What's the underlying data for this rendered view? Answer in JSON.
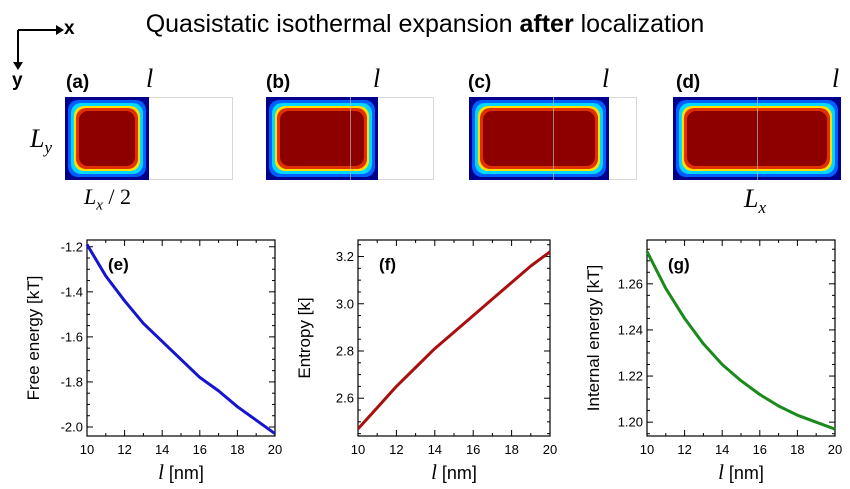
{
  "title": {
    "prefix": "Quasistatic isothermal expansion ",
    "bold": "after",
    "suffix": " localization"
  },
  "axes_indicator": {
    "x": "x",
    "y": "y"
  },
  "panels_top": [
    {
      "label": "(a)",
      "symbol": "l",
      "fill_fraction": 0.5
    },
    {
      "label": "(b)",
      "symbol": "l",
      "fill_fraction": 0.667
    },
    {
      "label": "(c)",
      "symbol": "l",
      "fill_fraction": 0.833
    },
    {
      "label": "(d)",
      "symbol": "l",
      "fill_fraction": 1.0
    }
  ],
  "annotations": {
    "ly": {
      "base": "L",
      "sub": "y"
    },
    "lx_half": {
      "base": "L",
      "sub": "x",
      "suffix": " / 2"
    },
    "lx": {
      "base": "L",
      "sub": "x"
    }
  },
  "chart_data": [
    {
      "type": "line",
      "panel_label": "(e)",
      "xlabel_symbol": "l",
      "xlabel_unit": " [nm]",
      "ylabel": "Free energy [kT]",
      "xlim": [
        10,
        20
      ],
      "ylim": [
        -2.04,
        -1.17
      ],
      "xticks": [
        10,
        12,
        14,
        16,
        18,
        20
      ],
      "yticks": [
        "-1.2",
        "-1.4",
        "-1.6",
        "-1.8",
        "-2.0"
      ],
      "ytick_values": [
        -1.2,
        -1.4,
        -1.6,
        -1.8,
        -2.0
      ],
      "color": "#1515d0",
      "x": [
        10,
        11,
        12,
        13,
        14,
        15,
        16,
        17,
        18,
        19,
        20
      ],
      "y": [
        -1.19,
        -1.33,
        -1.44,
        -1.54,
        -1.62,
        -1.7,
        -1.78,
        -1.84,
        -1.91,
        -1.97,
        -2.03
      ]
    },
    {
      "type": "line",
      "panel_label": "(f)",
      "xlabel_symbol": "l",
      "xlabel_unit": " [nm]",
      "ylabel": "Entropy [k]",
      "xlim": [
        10,
        20
      ],
      "ylim": [
        2.44,
        3.27
      ],
      "xticks": [
        10,
        12,
        14,
        16,
        18,
        20
      ],
      "yticks": [
        "3.2",
        "3.0",
        "2.8",
        "2.6"
      ],
      "ytick_values": [
        3.2,
        3.0,
        2.8,
        2.6
      ],
      "color": "#a81010",
      "x": [
        10,
        11,
        12,
        13,
        14,
        15,
        16,
        17,
        18,
        19,
        20
      ],
      "y": [
        2.47,
        2.56,
        2.65,
        2.73,
        2.81,
        2.88,
        2.95,
        3.02,
        3.09,
        3.16,
        3.22
      ]
    },
    {
      "type": "line",
      "panel_label": "(g)",
      "xlabel_symbol": "l",
      "xlabel_unit": " [nm]",
      "ylabel": "Internal energy [kT]",
      "xlim": [
        10,
        20
      ],
      "ylim": [
        1.194,
        1.279
      ],
      "xticks": [
        10,
        12,
        14,
        16,
        18,
        20
      ],
      "yticks": [
        "1.26",
        "1.24",
        "1.22",
        "1.20"
      ],
      "ytick_values": [
        1.26,
        1.24,
        1.22,
        1.2
      ],
      "color": "#1a8a1a",
      "x": [
        10,
        11,
        12,
        13,
        14,
        15,
        16,
        17,
        18,
        19,
        20
      ],
      "y": [
        1.274,
        1.258,
        1.245,
        1.234,
        1.225,
        1.218,
        1.212,
        1.207,
        1.203,
        1.2,
        1.197
      ]
    }
  ]
}
